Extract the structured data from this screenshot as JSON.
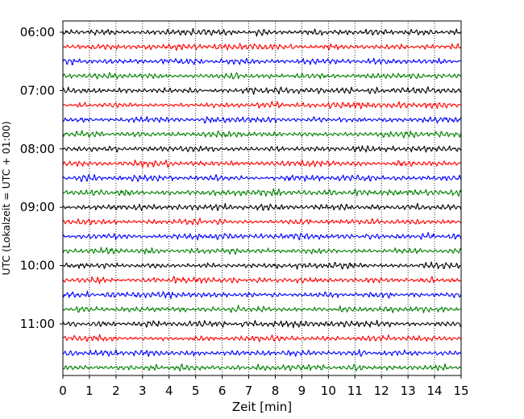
{
  "chart_data": {
    "type": "line",
    "title": "",
    "xlabel": "Zeit  [min]",
    "ylabel": "UTC (Lokalzeit = UTC + 01:00)",
    "xlim": [
      0,
      15
    ],
    "xticks": [
      "0",
      "1",
      "2",
      "3",
      "4",
      "5",
      "6",
      "7",
      "8",
      "9",
      "10",
      "11",
      "12",
      "13",
      "14",
      "15"
    ],
    "y_tick_labels": [
      "06:00",
      "07:00",
      "08:00",
      "09:00",
      "10:00",
      "11:00"
    ],
    "grid": "vertical dotted",
    "legend": "none",
    "trace_interval_minutes": 15,
    "series": [
      {
        "start": "06:00",
        "color": "#000000"
      },
      {
        "start": "06:15",
        "color": "#ff0000"
      },
      {
        "start": "06:30",
        "color": "#0000ff"
      },
      {
        "start": "06:45",
        "color": "#008000"
      },
      {
        "start": "07:00",
        "color": "#000000"
      },
      {
        "start": "07:15",
        "color": "#ff0000"
      },
      {
        "start": "07:30",
        "color": "#0000ff"
      },
      {
        "start": "07:45",
        "color": "#008000"
      },
      {
        "start": "08:00",
        "color": "#000000"
      },
      {
        "start": "08:15",
        "color": "#ff0000"
      },
      {
        "start": "08:30",
        "color": "#0000ff"
      },
      {
        "start": "08:45",
        "color": "#008000"
      },
      {
        "start": "09:00",
        "color": "#000000"
      },
      {
        "start": "09:15",
        "color": "#ff0000"
      },
      {
        "start": "09:30",
        "color": "#0000ff"
      },
      {
        "start": "09:45",
        "color": "#008000"
      },
      {
        "start": "10:00",
        "color": "#000000"
      },
      {
        "start": "10:15",
        "color": "#ff0000"
      },
      {
        "start": "10:30",
        "color": "#0000ff"
      },
      {
        "start": "10:45",
        "color": "#008000"
      },
      {
        "start": "11:00",
        "color": "#000000"
      },
      {
        "start": "11:15",
        "color": "#ff0000"
      },
      {
        "start": "11:30",
        "color": "#0000ff"
      },
      {
        "start": "11:45",
        "color": "#008000"
      }
    ]
  }
}
